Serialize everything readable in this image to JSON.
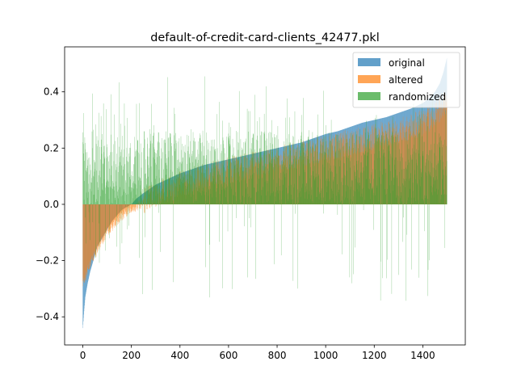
{
  "chart_data": {
    "type": "bar",
    "title": "default-of-credit-card-clients_42477.pkl",
    "xlabel": "",
    "ylabel": "",
    "xlim": [
      -75,
      1575
    ],
    "ylim": [
      -0.5,
      0.56
    ],
    "xticks": [
      0,
      200,
      400,
      600,
      800,
      1000,
      1200,
      1400
    ],
    "yticks": [
      -0.4,
      -0.2,
      0.0,
      0.2,
      0.4
    ],
    "ytick_labels": [
      "−0.4",
      "−0.2",
      "0.0",
      "0.2",
      "0.4"
    ],
    "n_points": 1500,
    "legend_position": "top-right",
    "grid": false,
    "series": [
      {
        "name": "original",
        "color": "#1f77b4",
        "alpha": 0.7,
        "description_values": "sorted ascending from about -0.44 at x=0 to about 0.52 at x=1499; crosses zero near x=200",
        "x": [
          0,
          5,
          10,
          20,
          30,
          40,
          50,
          60,
          80,
          100,
          120,
          140,
          160,
          180,
          200,
          220,
          250,
          300,
          350,
          400,
          450,
          500,
          550,
          600,
          650,
          700,
          750,
          800,
          850,
          900,
          950,
          1000,
          1050,
          1100,
          1150,
          1200,
          1250,
          1300,
          1350,
          1400,
          1430,
          1450,
          1470,
          1485,
          1499
        ],
        "values": [
          -0.44,
          -0.38,
          -0.33,
          -0.28,
          -0.24,
          -0.21,
          -0.18,
          -0.15,
          -0.12,
          -0.09,
          -0.06,
          -0.04,
          -0.02,
          -0.01,
          0.0,
          0.02,
          0.04,
          0.07,
          0.09,
          0.11,
          0.125,
          0.14,
          0.15,
          0.16,
          0.17,
          0.18,
          0.19,
          0.2,
          0.21,
          0.22,
          0.235,
          0.25,
          0.26,
          0.275,
          0.29,
          0.3,
          0.31,
          0.325,
          0.34,
          0.36,
          0.38,
          0.4,
          0.43,
          0.47,
          0.52
        ]
      },
      {
        "name": "altered",
        "color": "#ff7f0e",
        "alpha": 0.7,
        "description_values": "follows original with noise; negative bars reach about -0.28 at the start, positive values grow to about 0.37 near x=1499",
        "x": [
          0,
          10,
          20,
          40,
          60,
          80,
          100,
          130,
          160,
          200,
          240,
          300,
          400,
          500,
          600,
          700,
          800,
          900,
          1000,
          1100,
          1200,
          1300,
          1400,
          1450,
          1499
        ],
        "values": [
          -0.28,
          -0.26,
          -0.23,
          -0.19,
          -0.16,
          -0.13,
          -0.1,
          -0.07,
          -0.04,
          -0.015,
          0.0,
          0.04,
          0.07,
          0.1,
          0.12,
          0.14,
          0.16,
          0.18,
          0.2,
          0.22,
          0.24,
          0.26,
          0.29,
          0.32,
          0.37
        ],
        "noise_amplitude": 0.06
      },
      {
        "name": "randomized",
        "color": "#2ca02c",
        "alpha": 0.7,
        "description_values": "noisy bars mostly between 0.0 and 0.25 with spikes up to about 0.5 and sparse negative spikes down to about -0.4",
        "typical_range": [
          0.0,
          0.25
        ],
        "spike_max": 0.5,
        "spike_min": -0.4
      }
    ]
  }
}
